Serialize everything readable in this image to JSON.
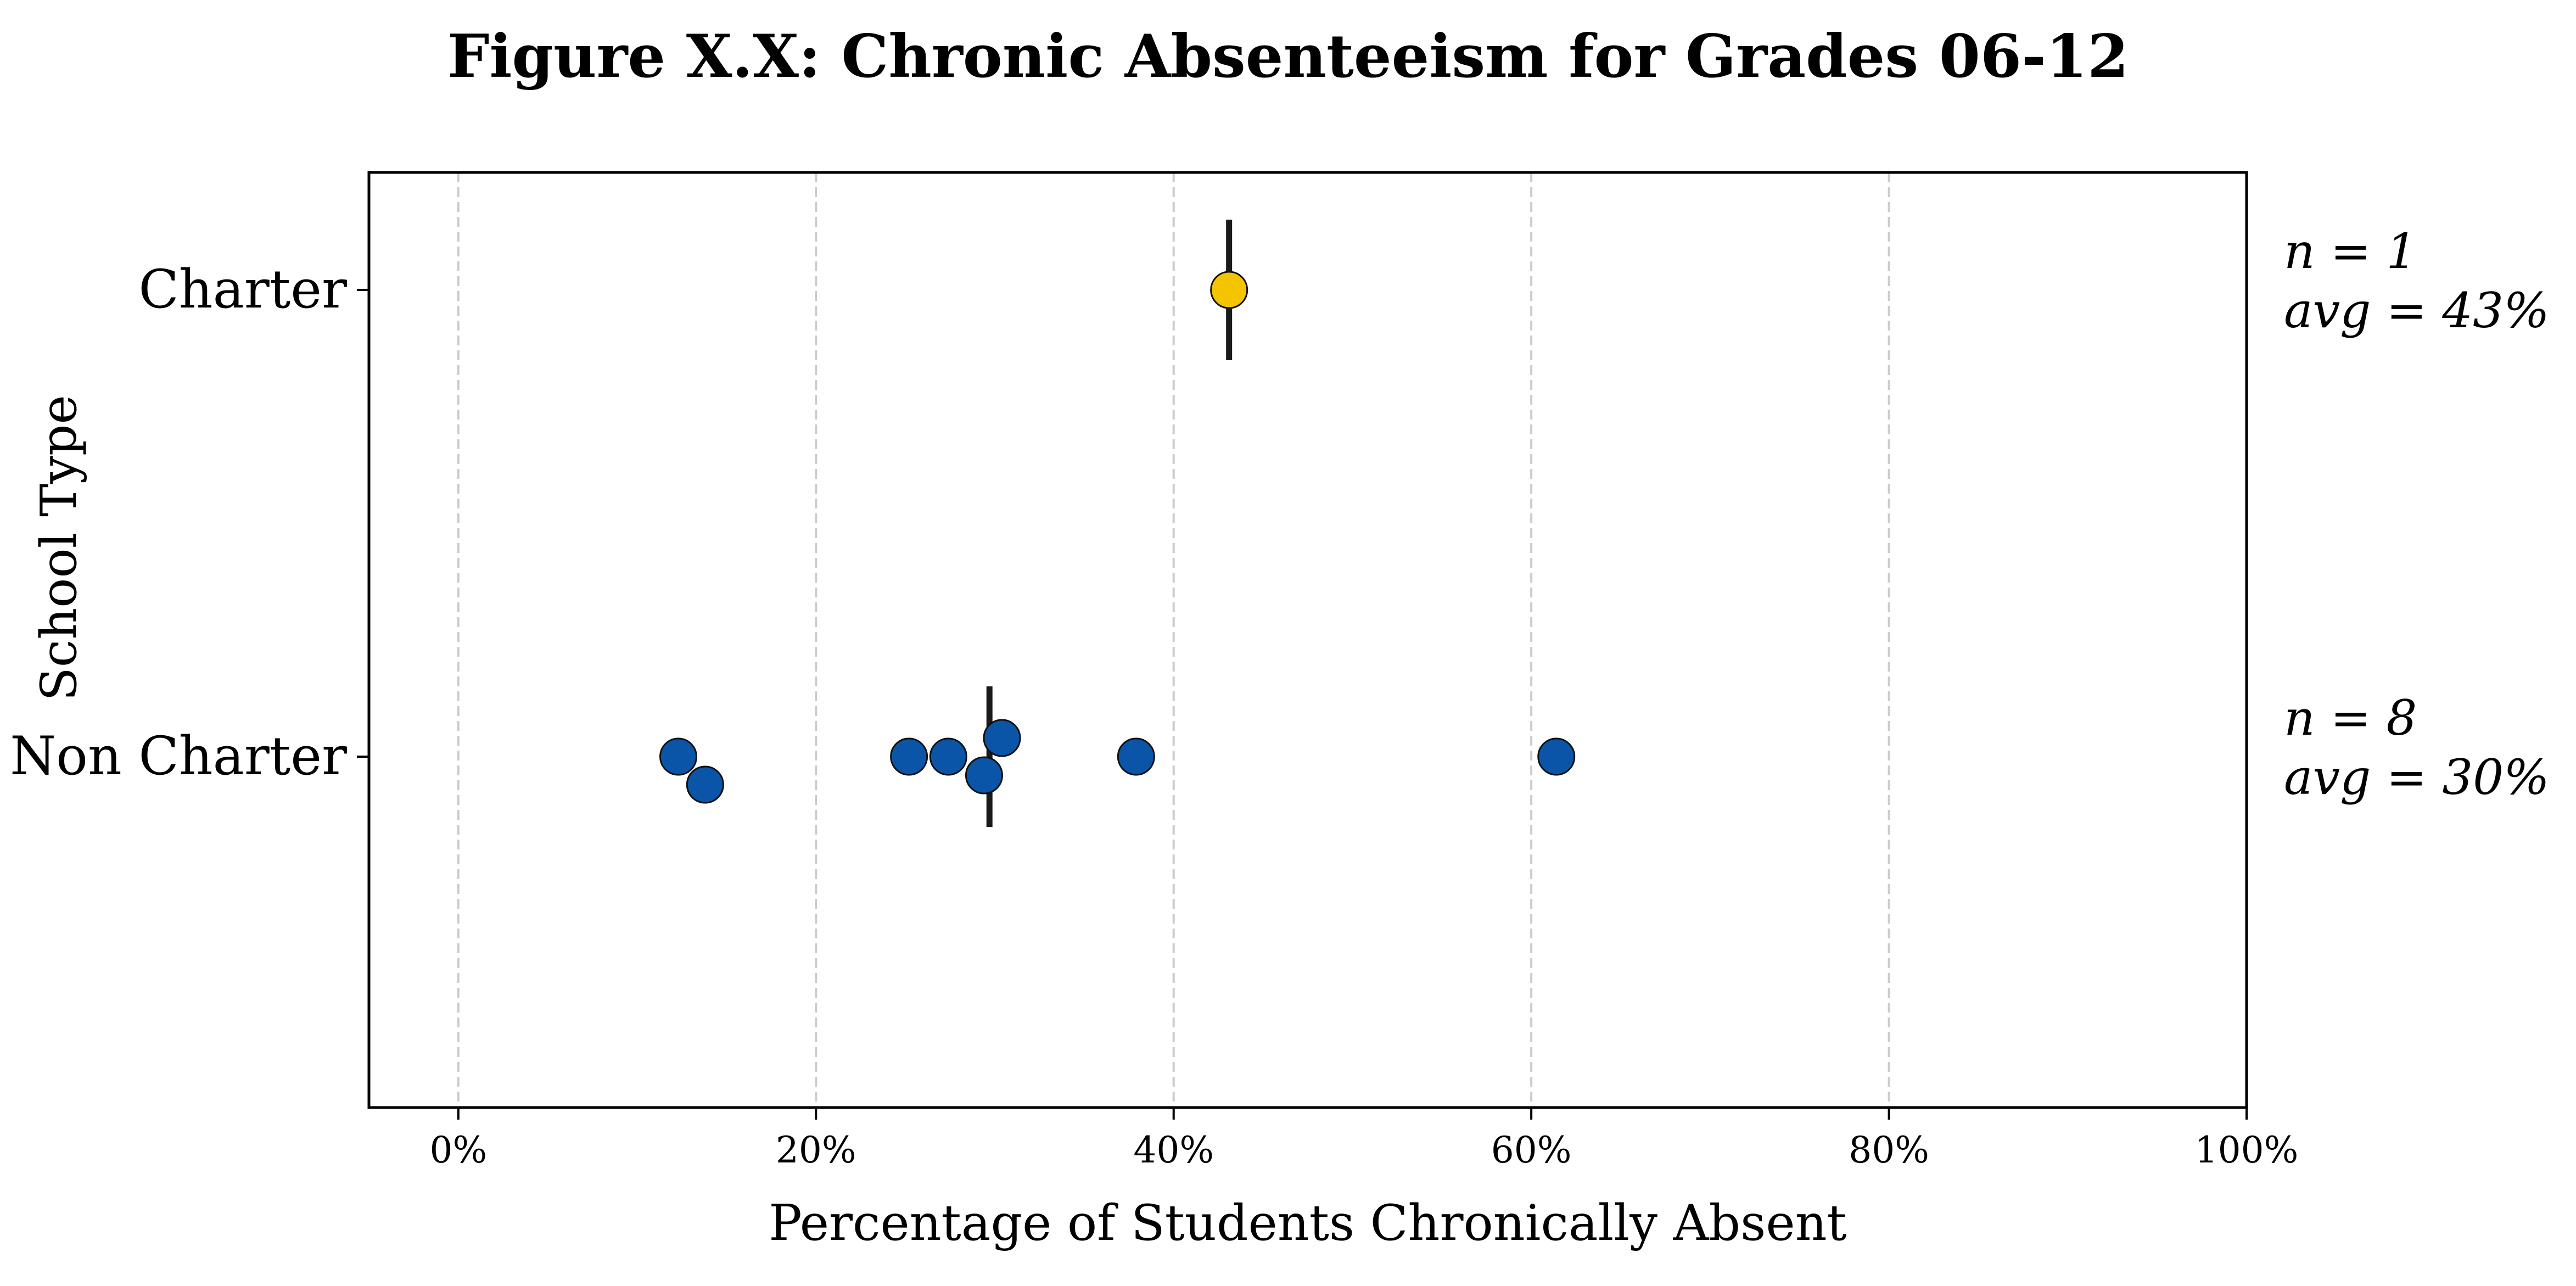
{
  "chart_data": {
    "type": "scatter",
    "title": "Figure X.X: Chronic Absenteeism for Grades 06-12",
    "xlabel": "Percentage of Students Chronically Absent",
    "ylabel": "School Type",
    "xlim": [
      -5,
      100
    ],
    "xticks": [
      0,
      20,
      40,
      60,
      80,
      100
    ],
    "xtick_labels": [
      "0%",
      "20%",
      "40%",
      "60%",
      "80%",
      "100%"
    ],
    "grid": "vertical dashed",
    "categories": [
      "Charter",
      "Non Charter"
    ],
    "series": [
      {
        "category": "Charter",
        "color": "#f5c400",
        "points": [
          {
            "x": 43.1,
            "jitter": 0
          }
        ],
        "mean": 43.1,
        "annotation": [
          "n = 1",
          "avg = 43%"
        ]
      },
      {
        "category": "Non Charter",
        "color": "#0a55a8",
        "points": [
          {
            "x": 12.3,
            "jitter": 0
          },
          {
            "x": 13.8,
            "jitter": 0.06
          },
          {
            "x": 25.2,
            "jitter": 0
          },
          {
            "x": 27.4,
            "jitter": 0
          },
          {
            "x": 29.4,
            "jitter": 0.04
          },
          {
            "x": 30.4,
            "jitter": -0.04
          },
          {
            "x": 37.9,
            "jitter": 0
          },
          {
            "x": 61.4,
            "jitter": 0
          }
        ],
        "mean": 29.7,
        "annotation": [
          "n = 8",
          "avg = 30%"
        ]
      }
    ]
  }
}
